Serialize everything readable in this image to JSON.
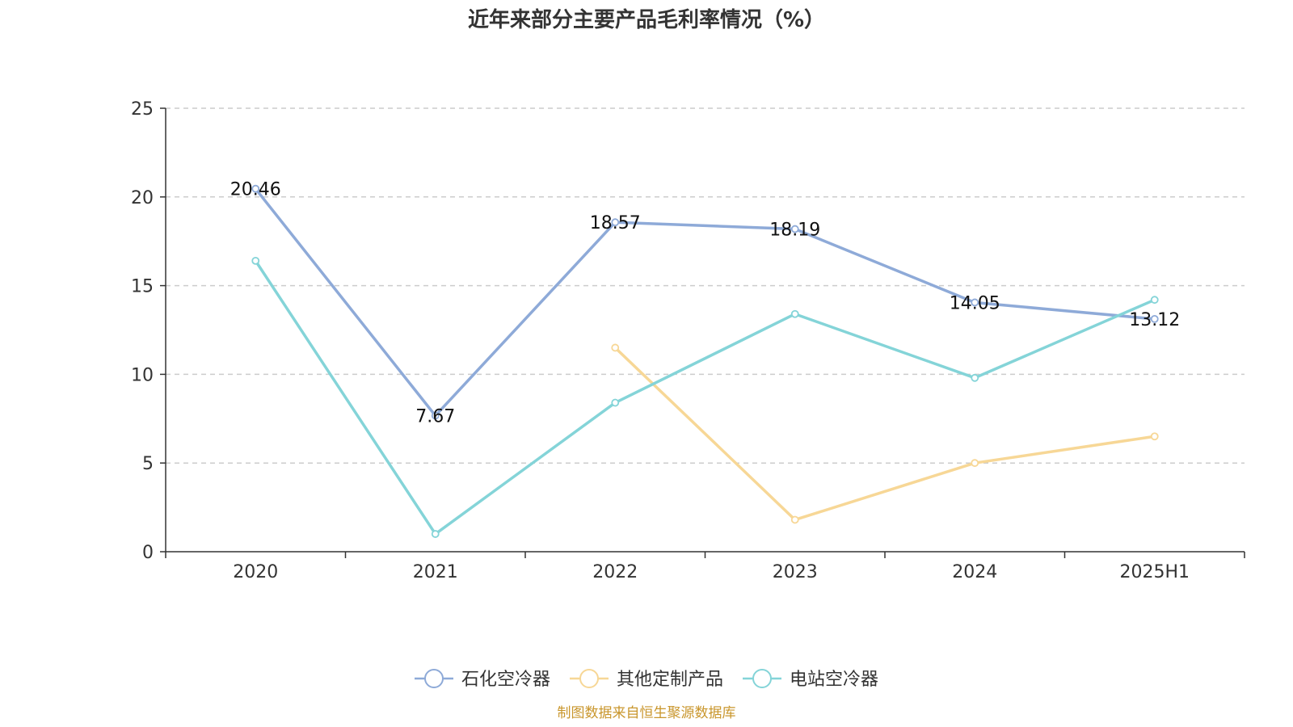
{
  "chart_data": {
    "type": "line",
    "title": "近年来部分主要产品毛利率情况（%）",
    "xlabel": "",
    "ylabel": "",
    "categories": [
      "2020",
      "2021",
      "2022",
      "2023",
      "2024",
      "2025H1"
    ],
    "ylim": [
      0,
      25
    ],
    "yticks": [
      0,
      5,
      10,
      15,
      20,
      25
    ],
    "grid": "horizontal-dashed",
    "legend_position": "bottom",
    "series": [
      {
        "name": "石化空冷器",
        "color": "#8eaad8",
        "values": [
          20.46,
          7.67,
          18.57,
          18.19,
          14.05,
          13.12
        ],
        "show_labels": true
      },
      {
        "name": "其他定制产品",
        "color": "#f7d796",
        "values": [
          null,
          null,
          11.5,
          1.8,
          5.0,
          6.5
        ],
        "show_labels": false
      },
      {
        "name": "电站空冷器",
        "color": "#84d4d8",
        "values": [
          16.4,
          1.0,
          8.4,
          13.4,
          9.8,
          14.2
        ],
        "show_labels": false
      }
    ]
  },
  "source_note": "制图数据来自恒生聚源数据库"
}
